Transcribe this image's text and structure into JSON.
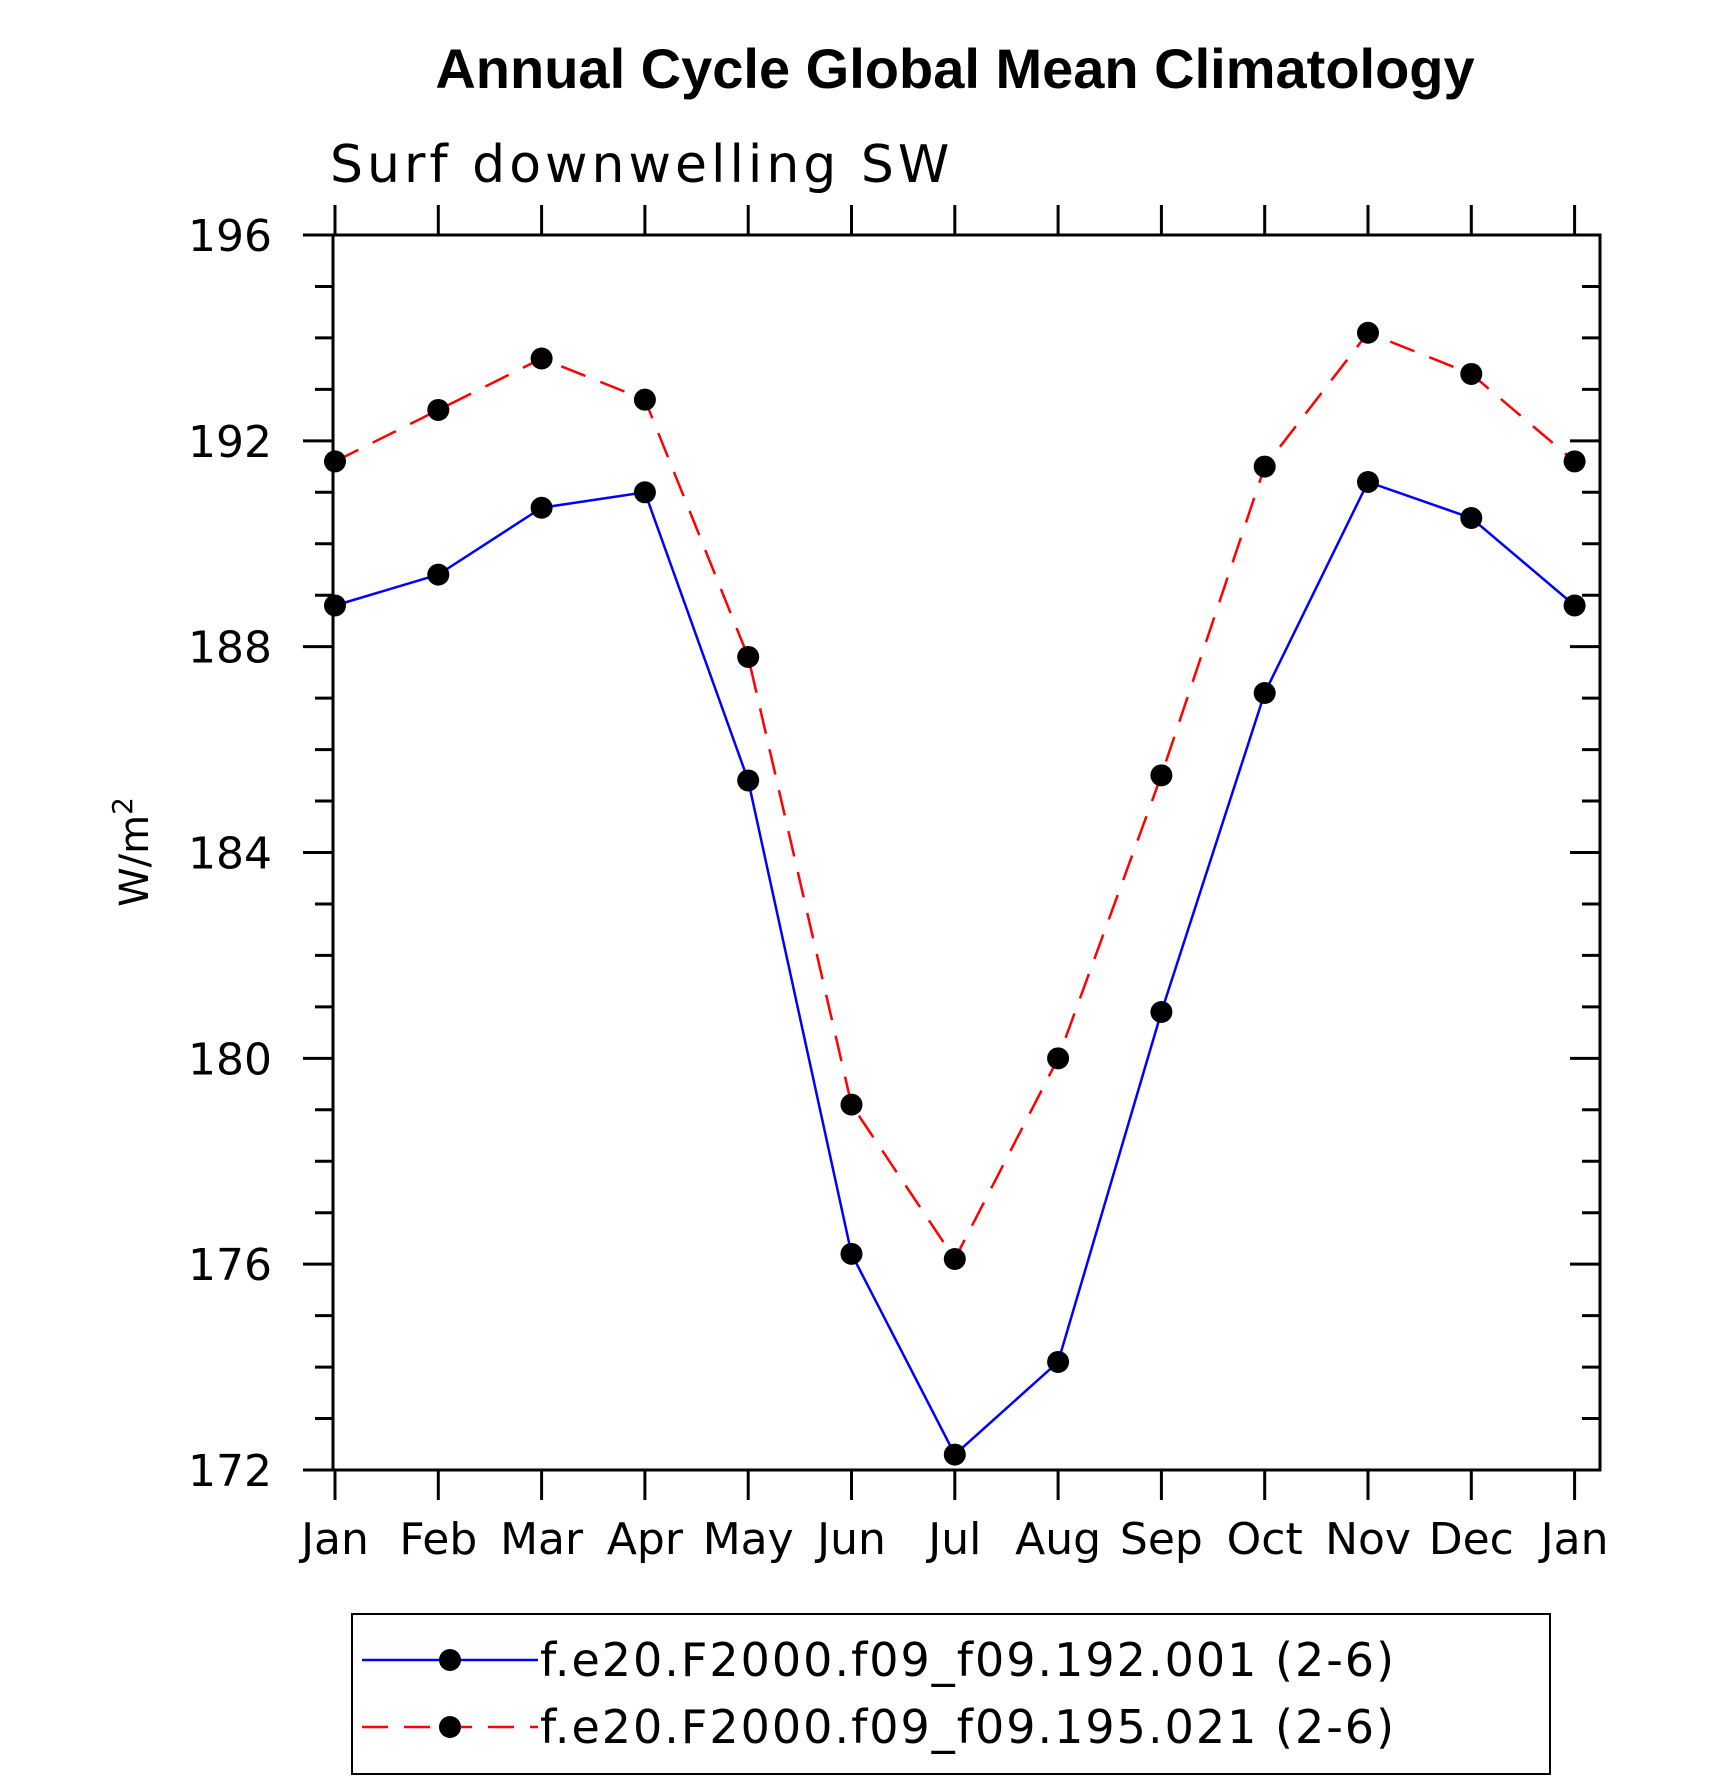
{
  "chart_data": {
    "type": "line",
    "title": "Annual Cycle Global Mean Climatology",
    "subtitle": "Surf downwelling SW",
    "ylabel": "W/m",
    "ylabel_sup": "2",
    "xlabel": "",
    "categories": [
      "Jan",
      "Feb",
      "Mar",
      "Apr",
      "May",
      "Jun",
      "Jul",
      "Aug",
      "Sep",
      "Oct",
      "Nov",
      "Dec",
      "Jan"
    ],
    "ylim": [
      172,
      196
    ],
    "yticks": [
      172,
      176,
      180,
      184,
      188,
      192,
      196
    ],
    "yminor_step": 1,
    "grid": false,
    "legend_position": "bottom",
    "series": [
      {
        "name": "f.e20.F2000.f09_f09.192.001 (2-6)",
        "color": "#0000ff",
        "dash": "solid",
        "marker": "filled-circle",
        "values": [
          188.8,
          189.4,
          190.7,
          191.0,
          185.4,
          176.2,
          172.3,
          174.1,
          180.9,
          187.1,
          191.2,
          190.5,
          188.8
        ]
      },
      {
        "name": "f.e20.F2000.f09_f09.195.021 (2-6)",
        "color": "#ff0000",
        "dash": "dashed",
        "marker": "filled-circle",
        "values": [
          191.6,
          192.6,
          193.6,
          192.8,
          187.8,
          179.1,
          176.1,
          180.0,
          185.5,
          191.5,
          194.1,
          193.3,
          191.6
        ]
      }
    ]
  }
}
